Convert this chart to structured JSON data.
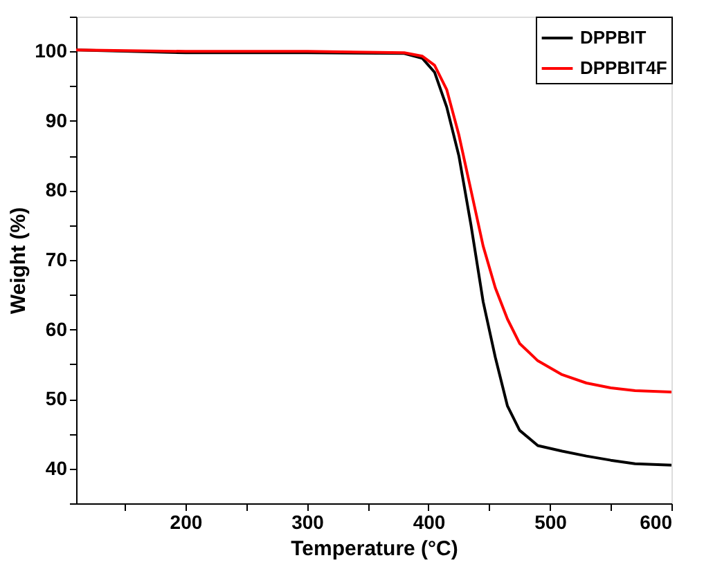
{
  "chart_data": {
    "type": "line",
    "xlabel": "Temperature (°C)",
    "ylabel": "Weight (%)",
    "xlim": [
      110,
      600
    ],
    "ylim": [
      35,
      105
    ],
    "xticks": [
      {
        "value": 150,
        "label": null
      },
      200,
      {
        "value": 250,
        "label": null
      },
      300,
      {
        "value": 350,
        "label": null
      },
      400,
      {
        "value": 450,
        "label": null
      },
      500,
      {
        "value": 550,
        "label": null
      },
      600
    ],
    "yticks": [
      {
        "value": 35,
        "label": null
      },
      40,
      {
        "value": 45,
        "label": null
      },
      50,
      {
        "value": 55,
        "label": null
      },
      60,
      {
        "value": 65,
        "label": null
      },
      70,
      {
        "value": 75,
        "label": null
      },
      80,
      {
        "value": 85,
        "label": null
      },
      90,
      {
        "value": 95,
        "label": null
      },
      100,
      {
        "value": 105,
        "label": null
      }
    ],
    "grid": false,
    "legend": "top right",
    "marker": "none",
    "line_style": "solid",
    "x": [
      110,
      200,
      300,
      380,
      395,
      405,
      415,
      425,
      435,
      445,
      455,
      465,
      475,
      490,
      510,
      530,
      550,
      570,
      600
    ],
    "series": [
      {
        "name": "DPPBIT",
        "color": "#000000",
        "values": [
          100.2,
          99.8,
          99.8,
          99.7,
          99,
          97,
          92,
          85,
          75,
          64,
          56,
          49,
          45.5,
          43.3,
          42.5,
          41.8,
          41.2,
          40.7,
          40.5
        ]
      },
      {
        "name": "DPPBIT4F",
        "color": "#ff0000",
        "values": [
          100.2,
          100,
          100,
          99.8,
          99.3,
          98,
          94.5,
          88,
          80,
          72,
          66,
          61.5,
          58,
          55.5,
          53.5,
          52.3,
          51.6,
          51.2,
          51
        ]
      }
    ]
  }
}
